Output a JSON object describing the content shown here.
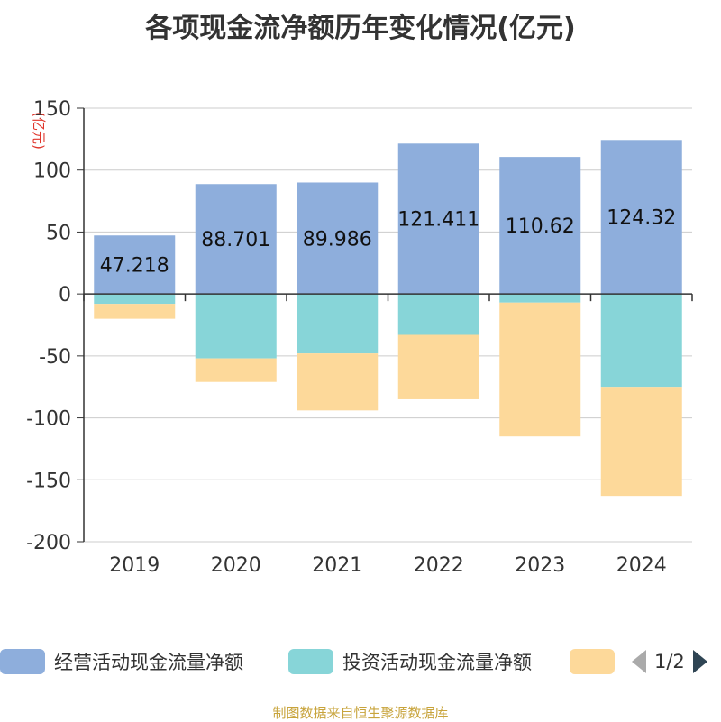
{
  "title": "各项现金流净额历年变化情况(亿元)",
  "source": "制图数据来自恒生聚源数据库",
  "chart_data": {
    "type": "bar",
    "stacked": true,
    "ylabel": "(亿元)",
    "ylim": [
      -200,
      150
    ],
    "yticks": [
      150,
      100,
      50,
      0,
      -50,
      -100,
      -150,
      -200
    ],
    "grid": true,
    "legend_position": "bottom",
    "categories": [
      "2019",
      "2020",
      "2021",
      "2022",
      "2023",
      "2024"
    ],
    "series": [
      {
        "name": "经营活动现金流量净额",
        "color": "#8eaedc",
        "values": [
          47.218,
          88.701,
          89.986,
          121.411,
          110.62,
          124.32
        ],
        "show_labels": true
      },
      {
        "name": "投资活动现金流量净额",
        "color": "#87d5d8",
        "values": [
          -8,
          -52,
          -48,
          -33,
          -7,
          -75
        ],
        "show_labels": false
      },
      {
        "name": "",
        "color": "#fdd99a",
        "values": [
          -12,
          -19,
          -46,
          -52,
          -108,
          -88
        ],
        "show_labels": false
      }
    ]
  },
  "pager": {
    "text": "1/2",
    "prev_color": "#aaaaaa",
    "next_color": "#2f4554"
  }
}
